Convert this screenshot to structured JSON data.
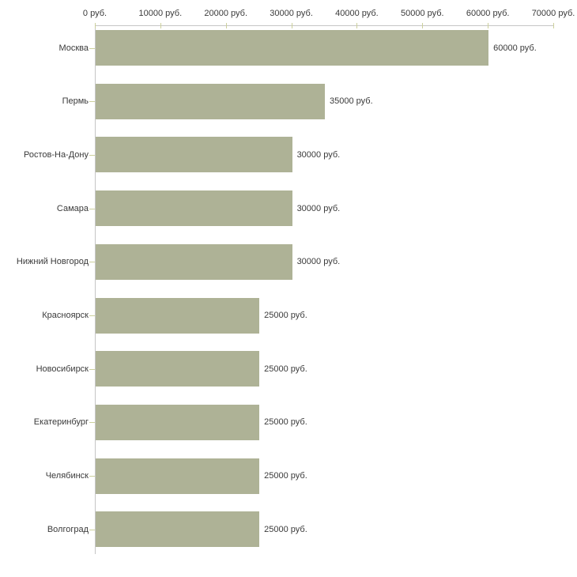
{
  "chart_data": {
    "type": "bar",
    "orientation": "horizontal",
    "categories": [
      "Москва",
      "Пермь",
      "Ростов-На-Дону",
      "Самара",
      "Нижний Новгород",
      "Красноярск",
      "Новосибирск",
      "Екатеринбург",
      "Челябинск",
      "Волгоград"
    ],
    "values": [
      60000,
      35000,
      30000,
      30000,
      30000,
      25000,
      25000,
      25000,
      25000,
      25000
    ],
    "value_labels": [
      "60000 руб.",
      "35000 руб.",
      "30000 руб.",
      "30000 руб.",
      "30000 руб.",
      "25000 руб.",
      "25000 руб.",
      "25000 руб.",
      "25000 руб.",
      "25000 руб."
    ],
    "x_ticks": [
      {
        "value": 0,
        "label": "0 руб."
      },
      {
        "value": 10000,
        "label": "10000 руб."
      },
      {
        "value": 20000,
        "label": "20000 руб."
      },
      {
        "value": 30000,
        "label": "30000 руб."
      },
      {
        "value": 40000,
        "label": "40000 руб."
      },
      {
        "value": 50000,
        "label": "50000 руб."
      },
      {
        "value": 60000,
        "label": "60000 руб."
      },
      {
        "value": 70000,
        "label": "70000 руб."
      }
    ],
    "xlim": [
      0,
      70000
    ],
    "grid": false,
    "legend": "none",
    "colors": {
      "bar": "#aeb296",
      "axis": "#c6c6c6",
      "tick": "#ccd09c",
      "text": "#3a3a3a",
      "background": "#ffffff"
    }
  }
}
